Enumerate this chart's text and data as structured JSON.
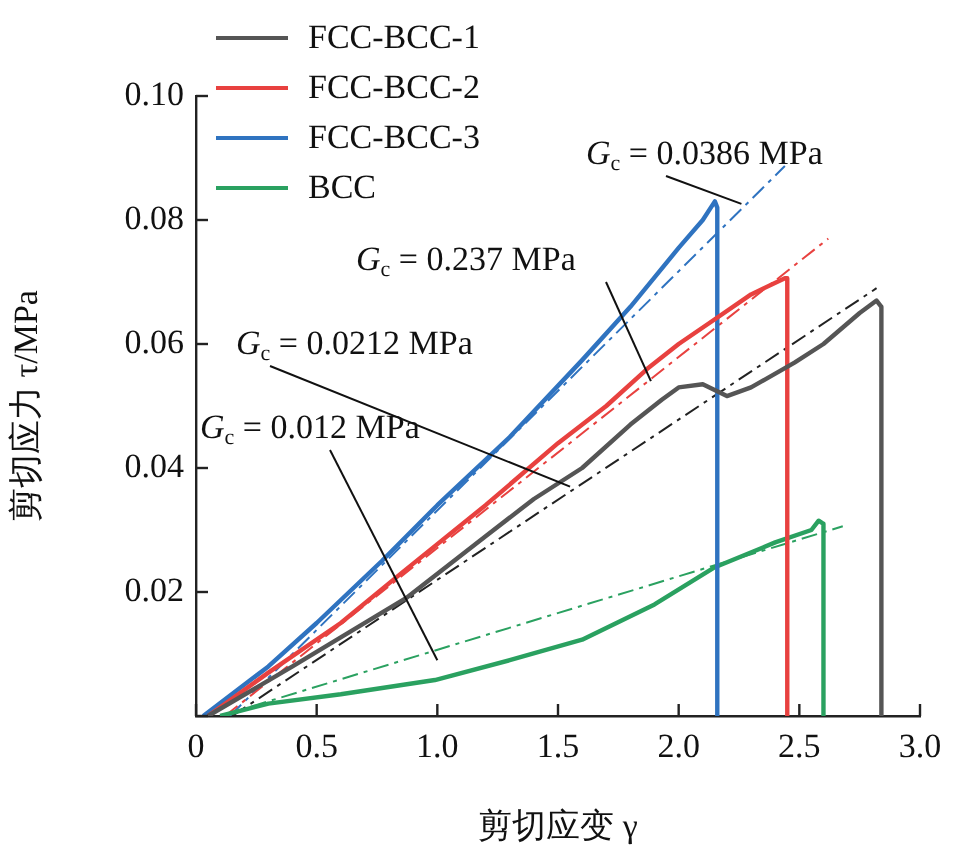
{
  "chart_data": {
    "type": "line",
    "xlabel": "剪切应变 γ",
    "ylabel": "剪切应力 τ/MPa",
    "xlim": [
      0,
      3
    ],
    "xticks": [
      0,
      0.5,
      {
        "value": 1,
        "label": "1.0"
      },
      1.5,
      {
        "value": 2,
        "label": "2.0"
      },
      2.5,
      {
        "value": 3,
        "label": "3.0"
      }
    ],
    "ylim": [
      0,
      0.1
    ],
    "yticks": [
      {
        "value": 0,
        "label": null
      },
      0.02,
      0.04,
      0.06,
      0.08,
      {
        "value": 0.1,
        "label": "0.10"
      }
    ],
    "grid": false,
    "legend": "top left",
    "marker": "none",
    "series": [
      {
        "name": "FCC-BCC-1",
        "color": "#555555",
        "line_style": "solid",
        "x": [
          0.05,
          0.4,
          0.87,
          1.2,
          1.4,
          1.6,
          1.8,
          1.93,
          2.0,
          2.1,
          2.2,
          2.3,
          2.48,
          2.6,
          2.75,
          2.82,
          2.84,
          2.84
        ],
        "values": [
          0,
          0.008,
          0.019,
          0.029,
          0.035,
          0.04,
          0.047,
          0.051,
          0.053,
          0.0535,
          0.0516,
          0.053,
          0.057,
          0.06,
          0.065,
          0.067,
          0.066,
          0
        ]
      },
      {
        "name": "FCC-BCC-2",
        "color": "#e8413f",
        "line_style": "solid",
        "x": [
          0.05,
          0.3,
          0.6,
          0.85,
          1.2,
          1.5,
          1.7,
          1.87,
          2.0,
          2.15,
          2.3,
          2.44,
          2.45,
          2.45
        ],
        "values": [
          0,
          0.007,
          0.015,
          0.023,
          0.034,
          0.044,
          0.05,
          0.056,
          0.06,
          0.064,
          0.068,
          0.0706,
          0.0706,
          0
        ]
      },
      {
        "name": "FCC-BCC-3",
        "color": "#2f73c0",
        "line_style": "solid",
        "x": [
          0.03,
          0.3,
          0.5,
          0.77,
          1.0,
          1.3,
          1.6,
          1.8,
          2.0,
          2.1,
          2.15,
          2.16,
          2.16
        ],
        "values": [
          0,
          0.008,
          0.015,
          0.025,
          0.034,
          0.045,
          0.0574,
          0.066,
          0.0755,
          0.08,
          0.083,
          0.082,
          0
        ]
      },
      {
        "name": "BCC",
        "color": "#2aa160",
        "line_style": "solid",
        "x": [
          0.1,
          0.3,
          0.6,
          0.99,
          1.3,
          1.6,
          1.9,
          2.15,
          2.4,
          2.55,
          2.58,
          2.6,
          2.6
        ],
        "values": [
          0,
          0.002,
          0.0035,
          0.0058,
          0.009,
          0.0123,
          0.018,
          0.024,
          0.028,
          0.03,
          0.0315,
          0.031,
          0
        ]
      },
      {
        "color": "#222222",
        "line_style": "dashed",
        "x": [
          0.15,
          2.82
        ],
        "values": [
          0,
          0.069
        ]
      },
      {
        "color": "#e8413f",
        "line_style": "dashed",
        "x": [
          0.12,
          2.62
        ],
        "values": [
          0,
          0.077
        ]
      },
      {
        "color": "#2f73c0",
        "line_style": "dashed",
        "x": [
          0.14,
          2.44
        ],
        "values": [
          0,
          0.0887
        ]
      },
      {
        "color": "#2aa160",
        "line_style": "dashed",
        "x": [
          0.1,
          2.68
        ],
        "values": [
          0,
          0.0306
        ]
      }
    ],
    "annotations": [
      {
        "text": "G$_{c}$ = 0.0386 MPa",
        "x": 2.26,
        "y": 0.0826
      },
      {
        "text": "G$_{c}$ = 0.237 MPa",
        "x": 1.885,
        "y": 0.054
      },
      {
        "text": "G$_{c}$ = 0.0212 MPa",
        "x": 1.55,
        "y": 0.037
      },
      {
        "text": "G$_{c}$ = 0.012 MPa",
        "x": 1.0,
        "y": 0.009
      }
    ]
  }
}
